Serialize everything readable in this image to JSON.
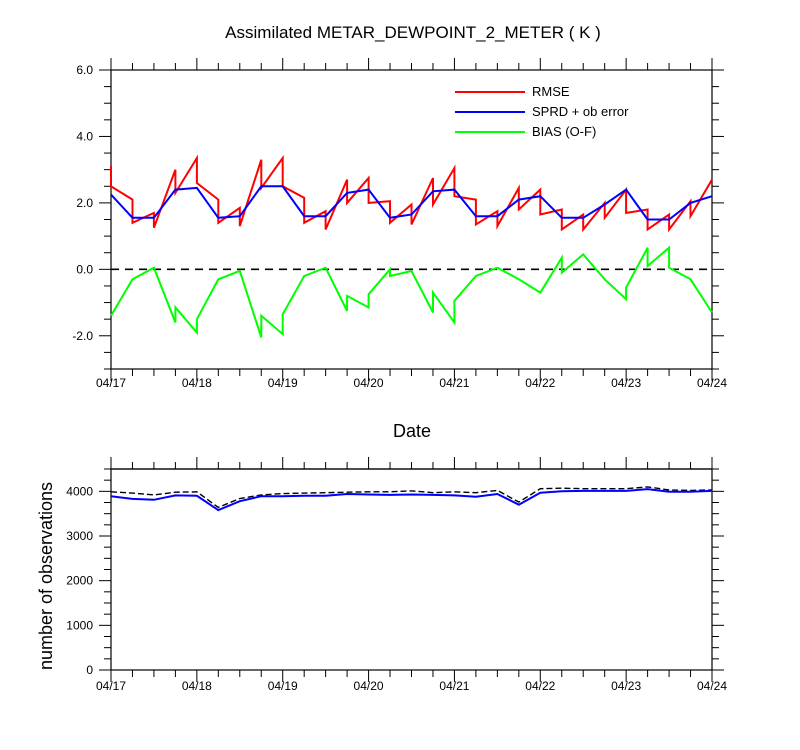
{
  "chart_data": [
    {
      "type": "line",
      "title": "Assimilated METAR_DEWPOINT_2_METER ( K )",
      "xlabel": "Date",
      "ylabel": "",
      "xlim": [
        0,
        7
      ],
      "ylim": [
        -3,
        6
      ],
      "x_tick_labels": [
        "04/17",
        "04/18",
        "04/19",
        "04/20",
        "04/21",
        "04/22",
        "04/23",
        "04/24"
      ],
      "y_tick_labels": [
        "6.0",
        "4.0",
        "2.0",
        "0.0",
        "-2.0"
      ],
      "y_ticks": [
        6,
        4,
        2,
        0,
        -2
      ],
      "reference_line": 0,
      "legend": {
        "placement": "top-right"
      },
      "series": [
        {
          "name": "RMSE",
          "color": "#ff0000",
          "points": [
            [
              0,
              3.1
            ],
            [
              0,
              2.5
            ],
            [
              0.25,
              2.1
            ],
            [
              0.25,
              1.4
            ],
            [
              0.5,
              1.7
            ],
            [
              0.5,
              1.25
            ],
            [
              0.75,
              3.0
            ],
            [
              0.75,
              2.3
            ],
            [
              1.0,
              3.35
            ],
            [
              1.0,
              2.6
            ],
            [
              1.25,
              2.1
            ],
            [
              1.25,
              1.4
            ],
            [
              1.5,
              1.85
            ],
            [
              1.5,
              1.3
            ],
            [
              1.75,
              3.3
            ],
            [
              1.75,
              2.45
            ],
            [
              2.0,
              3.35
            ],
            [
              2.0,
              2.5
            ],
            [
              2.25,
              2.15
            ],
            [
              2.25,
              1.4
            ],
            [
              2.5,
              1.75
            ],
            [
              2.5,
              1.2
            ],
            [
              2.75,
              2.7
            ],
            [
              2.75,
              2.0
            ],
            [
              3.0,
              2.75
            ],
            [
              3.0,
              2.0
            ],
            [
              3.25,
              2.05
            ],
            [
              3.25,
              1.4
            ],
            [
              3.5,
              1.95
            ],
            [
              3.5,
              1.35
            ],
            [
              3.75,
              2.75
            ],
            [
              3.75,
              1.95
            ],
            [
              4.0,
              3.05
            ],
            [
              4.0,
              2.2
            ],
            [
              4.25,
              2.1
            ],
            [
              4.25,
              1.35
            ],
            [
              4.5,
              1.75
            ],
            [
              4.5,
              1.3
            ],
            [
              4.75,
              2.45
            ],
            [
              4.75,
              1.8
            ],
            [
              5.0,
              2.4
            ],
            [
              5.0,
              1.65
            ],
            [
              5.25,
              1.8
            ],
            [
              5.25,
              1.2
            ],
            [
              5.5,
              1.65
            ],
            [
              5.5,
              1.2
            ],
            [
              5.75,
              2.0
            ],
            [
              5.75,
              1.55
            ],
            [
              6.0,
              2.4
            ],
            [
              6.0,
              1.7
            ],
            [
              6.25,
              1.8
            ],
            [
              6.25,
              1.2
            ],
            [
              6.5,
              1.65
            ],
            [
              6.5,
              1.2
            ],
            [
              6.75,
              2.05
            ],
            [
              6.75,
              1.6
            ],
            [
              7.0,
              2.7
            ]
          ]
        },
        {
          "name": "SPRD + ob error",
          "color": "#0000ff",
          "points": [
            [
              0,
              2.25
            ],
            [
              0.25,
              1.55
            ],
            [
              0.5,
              1.55
            ],
            [
              0.75,
              2.4
            ],
            [
              1.0,
              2.45
            ],
            [
              1.25,
              1.55
            ],
            [
              1.5,
              1.6
            ],
            [
              1.75,
              2.5
            ],
            [
              2.0,
              2.5
            ],
            [
              2.25,
              1.6
            ],
            [
              2.5,
              1.6
            ],
            [
              2.75,
              2.3
            ],
            [
              3.0,
              2.4
            ],
            [
              3.25,
              1.55
            ],
            [
              3.5,
              1.65
            ],
            [
              3.75,
              2.35
            ],
            [
              4.0,
              2.4
            ],
            [
              4.25,
              1.6
            ],
            [
              4.5,
              1.6
            ],
            [
              4.75,
              2.1
            ],
            [
              5.0,
              2.2
            ],
            [
              5.25,
              1.55
            ],
            [
              5.5,
              1.55
            ],
            [
              5.75,
              1.95
            ],
            [
              6.0,
              2.4
            ],
            [
              6.25,
              1.5
            ],
            [
              6.5,
              1.5
            ],
            [
              6.75,
              2.0
            ],
            [
              7.0,
              2.2
            ]
          ]
        },
        {
          "name": "BIAS (O-F)",
          "color": "#00ff00",
          "points": [
            [
              0,
              -1.4
            ],
            [
              0.25,
              -0.3
            ],
            [
              0.5,
              0.05
            ],
            [
              0.75,
              -1.6
            ],
            [
              0.75,
              -1.15
            ],
            [
              1.0,
              -1.9
            ],
            [
              1.0,
              -1.5
            ],
            [
              1.25,
              -0.3
            ],
            [
              1.5,
              -0.05
            ],
            [
              1.75,
              -2.05
            ],
            [
              1.75,
              -1.4
            ],
            [
              2.0,
              -1.95
            ],
            [
              2.0,
              -1.35
            ],
            [
              2.25,
              -0.2
            ],
            [
              2.5,
              0.05
            ],
            [
              2.75,
              -1.25
            ],
            [
              2.75,
              -0.8
            ],
            [
              3.0,
              -1.15
            ],
            [
              3.0,
              -0.75
            ],
            [
              3.25,
              0.0
            ],
            [
              3.25,
              -0.2
            ],
            [
              3.5,
              -0.05
            ],
            [
              3.75,
              -1.3
            ],
            [
              3.75,
              -0.7
            ],
            [
              4.0,
              -1.6
            ],
            [
              4.0,
              -0.95
            ],
            [
              4.25,
              -0.2
            ],
            [
              4.5,
              0.05
            ],
            [
              4.75,
              -0.3
            ],
            [
              5.0,
              -0.7
            ],
            [
              5.25,
              0.35
            ],
            [
              5.25,
              -0.1
            ],
            [
              5.5,
              0.45
            ],
            [
              5.75,
              -0.3
            ],
            [
              6.0,
              -0.9
            ],
            [
              6.0,
              -0.55
            ],
            [
              6.25,
              0.65
            ],
            [
              6.25,
              0.1
            ],
            [
              6.5,
              0.65
            ],
            [
              6.5,
              0.05
            ],
            [
              6.75,
              -0.3
            ],
            [
              7.0,
              -1.3
            ]
          ]
        }
      ]
    },
    {
      "type": "line",
      "title": "",
      "xlabel": "",
      "ylabel": "number of observations",
      "xlim": [
        0,
        7
      ],
      "ylim": [
        0,
        4500
      ],
      "x_tick_labels": [
        "04/17",
        "04/18",
        "04/19",
        "04/20",
        "04/21",
        "04/22",
        "04/23",
        "04/24"
      ],
      "y_tick_labels": [
        "4000",
        "3000",
        "2000",
        "1000",
        "0"
      ],
      "y_ticks": [
        4000,
        3000,
        2000,
        1000,
        0
      ],
      "reference_line": 4500,
      "series": [
        {
          "style": "dashed",
          "color": "#000000",
          "points": [
            [
              0,
              3990
            ],
            [
              0.25,
              3960
            ],
            [
              0.5,
              3920
            ],
            [
              0.75,
              3980
            ],
            [
              1.0,
              3990
            ],
            [
              1.25,
              3640
            ],
            [
              1.5,
              3840
            ],
            [
              1.75,
              3920
            ],
            [
              2.0,
              3950
            ],
            [
              2.25,
              3960
            ],
            [
              2.5,
              3970
            ],
            [
              2.75,
              3980
            ],
            [
              3.0,
              3990
            ],
            [
              3.25,
              3990
            ],
            [
              3.5,
              4010
            ],
            [
              3.75,
              3970
            ],
            [
              4.0,
              3990
            ],
            [
              4.25,
              3970
            ],
            [
              4.5,
              4020
            ],
            [
              4.75,
              3760
            ],
            [
              5.0,
              4060
            ],
            [
              5.25,
              4070
            ],
            [
              5.5,
              4060
            ],
            [
              5.75,
              4060
            ],
            [
              6.0,
              4060
            ],
            [
              6.25,
              4100
            ],
            [
              6.5,
              4030
            ],
            [
              6.75,
              4020
            ],
            [
              7.0,
              4030
            ]
          ]
        },
        {
          "style": "solid",
          "color": "#0000ff",
          "points": [
            [
              0,
              3890
            ],
            [
              0.25,
              3830
            ],
            [
              0.5,
              3810
            ],
            [
              0.75,
              3910
            ],
            [
              1.0,
              3900
            ],
            [
              1.25,
              3580
            ],
            [
              1.5,
              3780
            ],
            [
              1.75,
              3890
            ],
            [
              2.0,
              3890
            ],
            [
              2.25,
              3900
            ],
            [
              2.5,
              3900
            ],
            [
              2.75,
              3940
            ],
            [
              3.0,
              3930
            ],
            [
              3.25,
              3920
            ],
            [
              3.5,
              3930
            ],
            [
              3.75,
              3920
            ],
            [
              4.0,
              3910
            ],
            [
              4.25,
              3880
            ],
            [
              4.5,
              3940
            ],
            [
              4.75,
              3700
            ],
            [
              5.0,
              3970
            ],
            [
              5.25,
              4000
            ],
            [
              5.5,
              4010
            ],
            [
              5.75,
              4010
            ],
            [
              6.0,
              4010
            ],
            [
              6.25,
              4050
            ],
            [
              6.5,
              3990
            ],
            [
              6.75,
              3990
            ],
            [
              7.0,
              4010
            ]
          ]
        }
      ]
    }
  ]
}
